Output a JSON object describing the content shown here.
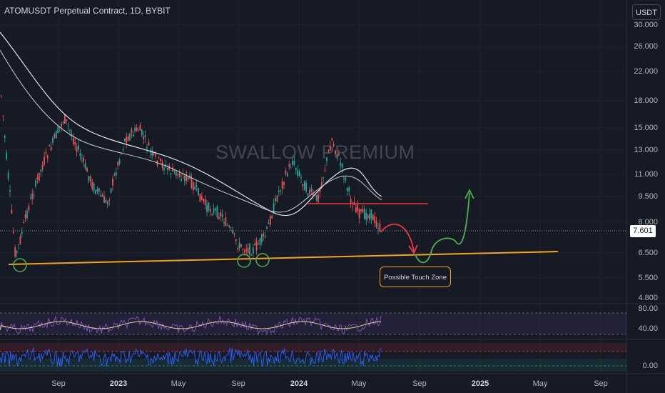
{
  "header": {
    "symbol_title": "ATOMUSDT Perpetual Contract, 1D, BYBIT",
    "currency_button": "USDT"
  },
  "watermark": "SWALLOW PREMIUM",
  "annotation": {
    "touch_zone_label": "Possible Touch Zone"
  },
  "last_price": "7.601",
  "y_axis_labels": [
    "30.000",
    "26.000",
    "22.000",
    "18.000",
    "15.000",
    "13.000",
    "11.000",
    "9.500",
    "8.000",
    "6.500",
    "5.500",
    "4.800"
  ],
  "rsi_axis_labels": [
    "80.00",
    "40.00"
  ],
  "osc_axis_labels": [
    "0.00"
  ],
  "x_axis_labels": [
    {
      "text": "Sep",
      "bold": false
    },
    {
      "text": "2023",
      "bold": true
    },
    {
      "text": "May",
      "bold": false
    },
    {
      "text": "Sep",
      "bold": false
    },
    {
      "text": "2024",
      "bold": true
    },
    {
      "text": "May",
      "bold": false
    },
    {
      "text": "Sep",
      "bold": false
    },
    {
      "text": "2025",
      "bold": true
    },
    {
      "text": "May",
      "bold": false
    },
    {
      "text": "Sep",
      "bold": false
    }
  ],
  "colors": {
    "background": "#161a25",
    "bull_candle": "#26a69a",
    "bear_candle": "#ef5350",
    "support_line": "#f7a21b",
    "resistance_line": "#f23645",
    "projection_up": "#4caf50",
    "projection_down": "#f23645",
    "rsi_line": "#e8d58a",
    "osc_line": "#2962ff"
  }
}
